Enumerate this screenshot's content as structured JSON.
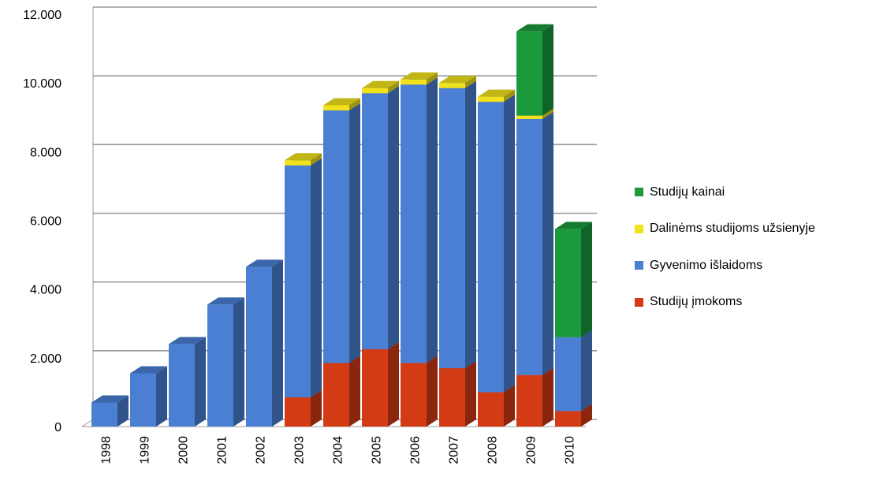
{
  "chart_data": {
    "type": "bar",
    "stacked": true,
    "three_d": true,
    "title": "",
    "xlabel": "",
    "ylabel": "",
    "ylim": [
      0,
      12000
    ],
    "yticks": [
      0,
      2000,
      4000,
      6000,
      8000,
      10000,
      12000
    ],
    "ytick_labels": [
      "0",
      "2.000",
      "4.000",
      "6.000",
      "8.000",
      "10.000",
      "12.000"
    ],
    "grid": true,
    "legend_position": "right",
    "categories": [
      "1998",
      "1999",
      "2000",
      "2001",
      "2002",
      "2003",
      "2004",
      "2005",
      "2006",
      "2007",
      "2008",
      "2009",
      "2010"
    ],
    "series": [
      {
        "name": "Studijų įmokoms",
        "color": "#d23b14",
        "values": [
          0,
          0,
          0,
          0,
          0,
          850,
          1850,
          2250,
          1850,
          1700,
          1000,
          1500,
          450
        ]
      },
      {
        "name": "Gyvenimo išlaidoms",
        "color": "#4a7fd3",
        "values": [
          700,
          1550,
          2400,
          3550,
          4650,
          6750,
          7350,
          7450,
          8100,
          8150,
          8450,
          7450,
          2150
        ]
      },
      {
        "name": "Dalinėms studijoms  užsienyje",
        "color": "#f2e21c",
        "values": [
          0,
          0,
          0,
          0,
          0,
          150,
          150,
          150,
          150,
          150,
          150,
          100,
          0
        ]
      },
      {
        "name": "Studijų kainai",
        "color": "#1a9a3c",
        "values": [
          0,
          0,
          0,
          0,
          0,
          0,
          0,
          0,
          0,
          0,
          0,
          2450,
          3150
        ]
      }
    ]
  }
}
